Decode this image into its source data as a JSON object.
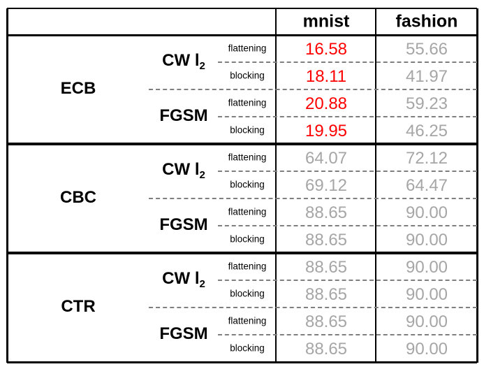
{
  "columns": [
    "mnist",
    "fashion"
  ],
  "colors": {
    "highlight": "#ff0000",
    "normal": "#a6a6a6",
    "border": "#000000",
    "dashed": "#7f7f7f"
  },
  "groups": [
    {
      "mode": "ECB",
      "attacks": [
        {
          "name": "CW l",
          "sub": "2",
          "rows": [
            {
              "method": "flattening",
              "mnist": "16.58",
              "fashion": "55.66",
              "mnist_highlight": true
            },
            {
              "method": "blocking",
              "mnist": "18.11",
              "fashion": "41.97",
              "mnist_highlight": true
            }
          ]
        },
        {
          "name": "FGSM",
          "sub": "",
          "rows": [
            {
              "method": "flattening",
              "mnist": "20.88",
              "fashion": "59.23",
              "mnist_highlight": true
            },
            {
              "method": "blocking",
              "mnist": "19.95",
              "fashion": "46.25",
              "mnist_highlight": true
            }
          ]
        }
      ]
    },
    {
      "mode": "CBC",
      "attacks": [
        {
          "name": "CW l",
          "sub": "2",
          "rows": [
            {
              "method": "flattening",
              "mnist": "64.07",
              "fashion": "72.12",
              "mnist_highlight": false
            },
            {
              "method": "blocking",
              "mnist": "69.12",
              "fashion": "64.47",
              "mnist_highlight": false
            }
          ]
        },
        {
          "name": "FGSM",
          "sub": "",
          "rows": [
            {
              "method": "flattening",
              "mnist": "88.65",
              "fashion": "90.00",
              "mnist_highlight": false
            },
            {
              "method": "blocking",
              "mnist": "88.65",
              "fashion": "90.00",
              "mnist_highlight": false
            }
          ]
        }
      ]
    },
    {
      "mode": "CTR",
      "attacks": [
        {
          "name": "CW l",
          "sub": "2",
          "rows": [
            {
              "method": "flattening",
              "mnist": "88.65",
              "fashion": "90.00",
              "mnist_highlight": false
            },
            {
              "method": "blocking",
              "mnist": "88.65",
              "fashion": "90.00",
              "mnist_highlight": false
            }
          ]
        },
        {
          "name": "FGSM",
          "sub": "",
          "rows": [
            {
              "method": "flattening",
              "mnist": "88.65",
              "fashion": "90.00",
              "mnist_highlight": false
            },
            {
              "method": "blocking",
              "mnist": "88.65",
              "fashion": "90.00",
              "mnist_highlight": false
            }
          ]
        }
      ]
    }
  ]
}
